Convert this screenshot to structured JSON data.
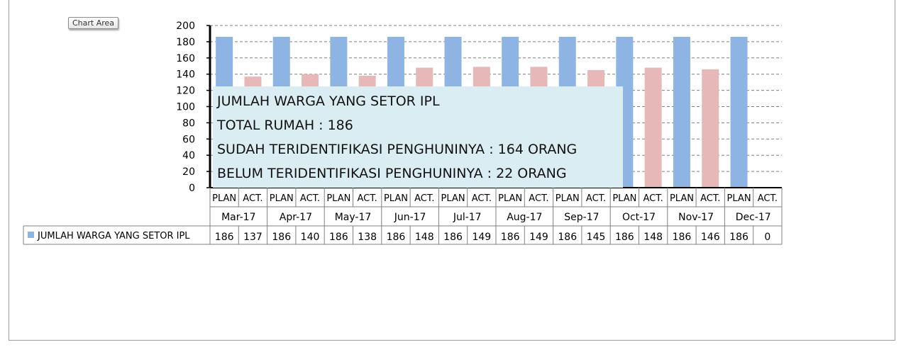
{
  "ui": {
    "chart_area_button": "Chart Area"
  },
  "overlay": {
    "lines": [
      "JUMLAH WARGA YANG SETOR IPL",
      "TOTAL RUMAH : 186",
      "SUDAH TERIDENTIFIKASI PENGHUNINYA : 164 ORANG",
      "BELUM TERIDENTIFIKASI PENGHUNINYA : 22 ORANG"
    ]
  },
  "colors": {
    "plan": "#8db4e2",
    "act": "#e6b9b8",
    "overlay_bg": "#daedf3",
    "grid": "#808080",
    "axis": "#000000"
  },
  "chart_data": {
    "type": "bar",
    "title": "",
    "xlabel": "",
    "ylabel": "",
    "ylim": [
      0,
      200
    ],
    "yticks": [
      0,
      20,
      40,
      60,
      80,
      100,
      120,
      140,
      160,
      180,
      200
    ],
    "grid": true,
    "months": [
      "Mar-17",
      "Apr-17",
      "May-17",
      "Jun-17",
      "Jul-17",
      "Aug-17",
      "Sep-17",
      "Oct-17",
      "Nov-17",
      "Dec-17"
    ],
    "subcategories": [
      "PLAN",
      "ACT."
    ],
    "series": [
      {
        "name": "JUMLAH WARGA YANG SETOR IPL",
        "values": [
          186,
          137,
          186,
          140,
          186,
          138,
          186,
          148,
          186,
          149,
          186,
          149,
          186,
          145,
          186,
          148,
          186,
          146,
          186,
          0
        ]
      }
    ],
    "data_table": true
  }
}
